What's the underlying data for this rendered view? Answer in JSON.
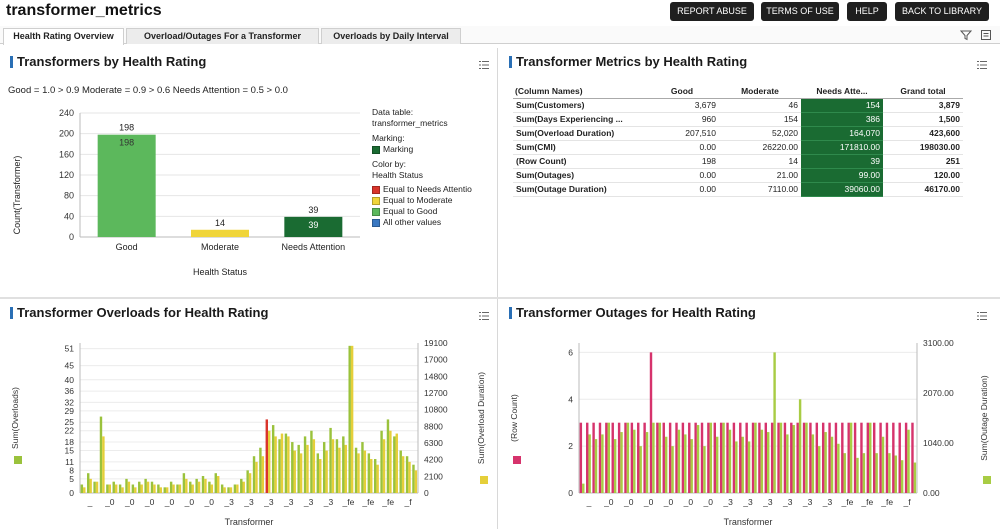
{
  "app": {
    "title": "transformer_metrics",
    "buttons": [
      "REPORT ABUSE",
      "TERMS OF USE",
      "HELP",
      "BACK TO LIBRARY"
    ]
  },
  "tabs": [
    {
      "label": "Health Rating Overview",
      "active": true
    },
    {
      "label": "Overload/Outages For a Transformer",
      "active": false
    },
    {
      "label": "Overloads by Daily Interval",
      "active": false
    }
  ],
  "colors": {
    "good": "#5cb85c",
    "moderate": "#f0d53a",
    "needs_attention_bar": "#1a6b32",
    "needs_attention_legend": "#d9342b",
    "all_other": "#3a78c2",
    "overloads_bar": "#9ac23c",
    "overload_duration_bar": "#e5cf3a",
    "row_count_bar": "#d6336c",
    "outage_duration_bar": "#a8cc44",
    "highlight": "#1a6b32",
    "title_marker": "#2a6fb5"
  },
  "panel1": {
    "title": "Transformers by Health Rating",
    "subtitle": "Good = 1.0 > 0.9 Moderate = 0.9 > 0.6 Needs Attention = 0.5 > 0.0",
    "legend": {
      "data_table_label": "Data table:",
      "data_table_value": "transformer_metrics",
      "marking_label": "Marking:",
      "marking_value": "Marking",
      "color_by_label": "Color by:",
      "color_by_value": "Health Status",
      "entries": [
        {
          "label": "Equal to Needs Attentio",
          "color": "#d9342b"
        },
        {
          "label": "Equal to Moderate",
          "color": "#f0d53a"
        },
        {
          "label": "Equal to Good",
          "color": "#5cb85c"
        },
        {
          "label": "All other values",
          "color": "#3a78c2"
        }
      ]
    }
  },
  "panel2": {
    "title": "Transformer Metrics by Health Rating",
    "columns": [
      "(Column Names)",
      "Good",
      "Moderate",
      "Needs Atte...",
      "Grand total"
    ],
    "rows": [
      [
        "Sum(Customers)",
        "3,679",
        "46",
        "154",
        "3,879"
      ],
      [
        "Sum(Days Experiencing ...",
        "960",
        "154",
        "386",
        "1,500"
      ],
      [
        "Sum(Overload Duration)",
        "207,510",
        "52,020",
        "164,070",
        "423,600"
      ],
      [
        "Sum(CMI)",
        "0.00",
        "26220.00",
        "171810.00",
        "198030.00"
      ],
      [
        "(Row Count)",
        "198",
        "14",
        "39",
        "251"
      ],
      [
        "Sum(Outages)",
        "0.00",
        "21.00",
        "99.00",
        "120.00"
      ],
      [
        "Sum(Outage Duration)",
        "0.00",
        "7110.00",
        "39060.00",
        "46170.00"
      ]
    ]
  },
  "panel3": {
    "title": "Transformer Overloads for Health Rating"
  },
  "panel4": {
    "title": "Transformer Outages for Health Rating"
  },
  "chart_data": [
    {
      "type": "bar",
      "title": "Transformers by Health Rating",
      "xlabel": "Health Status",
      "ylabel": "Count(Transformer)",
      "categories": [
        "Good",
        "Moderate",
        "Needs Attention"
      ],
      "values": [
        198,
        14,
        39
      ],
      "colors": [
        "#5cb85c",
        "#f0d53a",
        "#1a6b32"
      ],
      "ylim": [
        0,
        240
      ],
      "yticks": [
        0,
        20,
        40,
        60,
        80,
        100,
        120,
        140,
        160,
        180,
        200,
        220,
        240
      ],
      "grid": true
    },
    {
      "type": "bar",
      "title": "Transformer Overloads for Health Rating",
      "xlabel": "Transformer",
      "ylabel_left": "Sum(Overloads)",
      "ylabel_right": "Sum(Overload Duration)",
      "yticks_left": [
        0,
        5,
        8,
        11,
        15,
        18,
        22,
        25,
        29,
        32,
        36,
        40,
        45,
        51
      ],
      "yticks_right": [
        0,
        2100,
        4200,
        6300,
        8800,
        10800,
        12700,
        14800,
        17000,
        19100
      ],
      "ylim_left": [
        0,
        53
      ],
      "xtick_labels": [
        "_",
        "_0",
        "_0",
        "_0",
        "_0",
        "_0",
        "_0",
        "_3",
        "_3",
        "_3",
        "_3",
        "_3",
        "_3",
        "_fe",
        "_fe",
        "_fe",
        "_f"
      ],
      "series": [
        {
          "name": "Sum(Overloads)",
          "axis": "left",
          "values": [
            3,
            7,
            4,
            27,
            3,
            4,
            3,
            5,
            3,
            4,
            5,
            4,
            3,
            2,
            4,
            3,
            7,
            4,
            5,
            6,
            4,
            7,
            3,
            2,
            3,
            5,
            8,
            13,
            16,
            26,
            24,
            19,
            21,
            18,
            17,
            20,
            22,
            14,
            18,
            23,
            19,
            20,
            52,
            16,
            18,
            14,
            12,
            22,
            26,
            20,
            15,
            13,
            10
          ]
        },
        {
          "name": "Sum(Overload Duration)",
          "axis": "right",
          "values": [
            2,
            5,
            4,
            20,
            3,
            3,
            2,
            4,
            2,
            3,
            4,
            3,
            2,
            2,
            3,
            3,
            5,
            3,
            4,
            5,
            3,
            6,
            2,
            2,
            3,
            4,
            7,
            11,
            13,
            22,
            20,
            21,
            20,
            15,
            14,
            17,
            19,
            12,
            15,
            19,
            16,
            17,
            52,
            14,
            15,
            12,
            10,
            19,
            22,
            21,
            13,
            11,
            8
          ]
        }
      ],
      "highlight_index": 29,
      "grid": true
    },
    {
      "type": "bar",
      "title": "Transformer Outages for Health Rating",
      "xlabel": "Transformer",
      "ylabel_left": "(Row Count)",
      "ylabel_right": "Sum(Outage Duration)",
      "yticks_left": [
        0,
        2,
        4,
        6
      ],
      "yticks_right": [
        0.0,
        1040.0,
        2070.0,
        3100.0
      ],
      "ylim_left": [
        0,
        6.4
      ],
      "xtick_labels": [
        "_",
        "_0",
        "_0",
        "_0",
        "_0",
        "_0",
        "_0",
        "_3",
        "_3",
        "_3",
        "_3",
        "_3",
        "_3",
        "_fe",
        "_fe",
        "_fe",
        "_f"
      ],
      "series": [
        {
          "name": "(Row Count)",
          "axis": "left",
          "values": [
            3,
            3,
            3,
            3,
            3,
            3,
            3,
            3,
            3,
            3,
            3,
            6,
            3,
            3,
            3,
            3,
            3,
            3,
            3,
            3,
            3,
            3,
            3,
            3,
            3,
            3,
            3,
            3,
            3,
            3,
            3,
            3,
            3,
            3,
            3,
            3,
            3,
            3,
            3,
            3,
            3,
            3,
            3,
            3,
            3,
            3,
            3,
            3,
            3,
            3,
            3,
            3,
            3
          ]
        },
        {
          "name": "Sum(Outage Duration)",
          "axis": "right",
          "values": [
            0.4,
            2.5,
            2.3,
            2.5,
            3,
            2.3,
            2.6,
            3,
            2.7,
            2,
            2.6,
            3,
            3,
            2.4,
            2,
            2.7,
            2.5,
            2.3,
            2.9,
            2,
            3,
            2.4,
            3,
            2.7,
            2.2,
            2.4,
            2.2,
            3,
            2.7,
            2.6,
            6,
            3,
            2.5,
            2.9,
            4,
            3,
            2.5,
            2,
            2.6,
            2.4,
            2.1,
            1.7,
            3,
            1.5,
            1.7,
            3,
            1.7,
            2.4,
            1.7,
            1.6,
            1.4,
            2.7,
            1.3
          ]
        }
      ],
      "grid": true
    }
  ]
}
